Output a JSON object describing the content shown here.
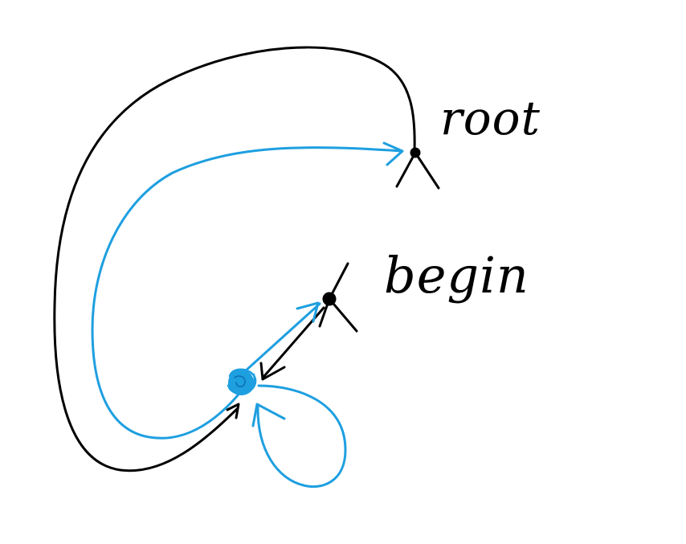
{
  "labels": {
    "root": "root",
    "begin": "begin"
  },
  "colors": {
    "ink": "#000000",
    "blue": "#1e9fe0",
    "background": "#ffffff"
  }
}
